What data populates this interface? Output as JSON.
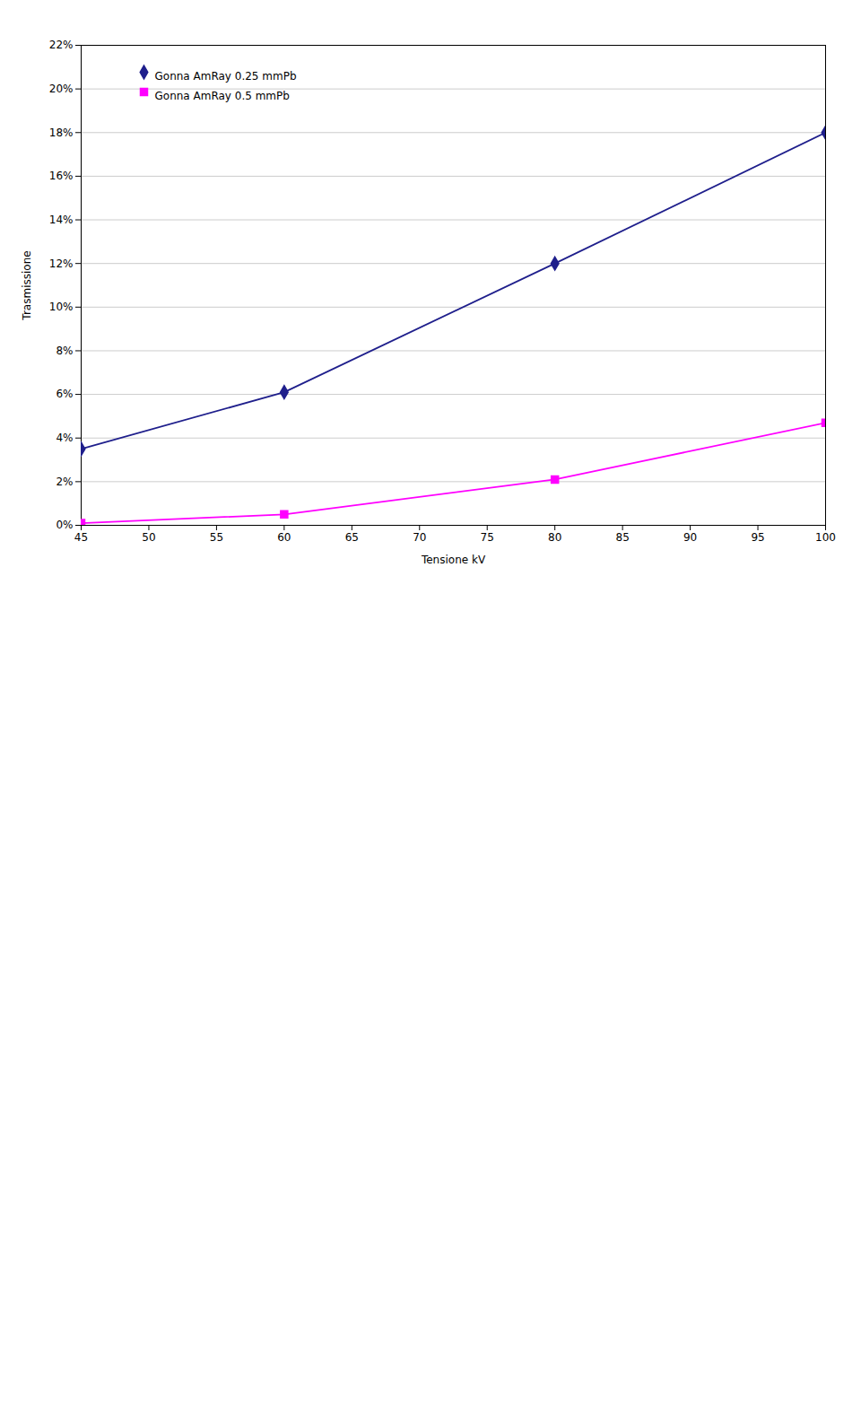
{
  "chart_data": {
    "type": "line",
    "xlabel": "Tensione kV",
    "ylabel": "Trasmissione",
    "x": [
      45,
      60,
      80,
      100
    ],
    "series": [
      {
        "name": "Gonna AmRay 0.25 mmPb",
        "color": "#1F1F8C",
        "marker": "diamond",
        "values": [
          3.5,
          6.1,
          12.0,
          18.0
        ]
      },
      {
        "name": "Gonna AmRay 0.5 mmPb",
        "color": "#FF00FF",
        "marker": "square",
        "values": [
          0.1,
          0.5,
          2.1,
          4.7
        ]
      }
    ],
    "xlim": [
      45,
      100
    ],
    "ylim": [
      0,
      22
    ],
    "xticks": [
      45,
      50,
      55,
      60,
      65,
      70,
      75,
      80,
      85,
      90,
      95,
      100
    ],
    "yticks": [
      {
        "value": 0,
        "label": "0%"
      },
      {
        "value": 2,
        "label": "2%"
      },
      {
        "value": 4,
        "label": "4%"
      },
      {
        "value": 6,
        "label": "6%"
      },
      {
        "value": 8,
        "label": "8%"
      },
      {
        "value": 10,
        "label": "10%"
      },
      {
        "value": 12,
        "label": "12%"
      },
      {
        "value": 14,
        "label": "14%"
      },
      {
        "value": 16,
        "label": "16%"
      },
      {
        "value": 18,
        "label": "18%"
      },
      {
        "value": 20,
        "label": "20%"
      },
      {
        "value": 22,
        "label": "22%"
      }
    ],
    "grid": "y",
    "legend": "upper left"
  }
}
